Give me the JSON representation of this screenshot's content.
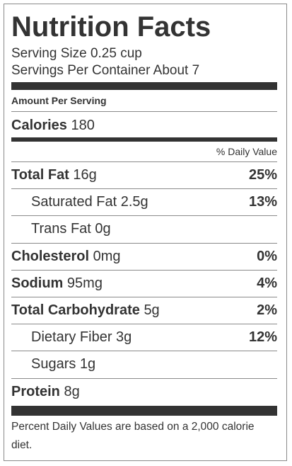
{
  "label": {
    "title": "Nutrition Facts",
    "serving_size": "Serving Size 0.25 cup",
    "servings_per_container": "Servings Per Container About 7",
    "amount_per_serving": "Amount Per Serving",
    "calories": {
      "name": "Calories",
      "amount": "180"
    },
    "daily_value_header": "% Daily Value",
    "rows": [
      {
        "name": "Total Fat",
        "amount": "16g",
        "dv": "25%",
        "indent": false
      },
      {
        "name": "Saturated Fat",
        "amount": "2.5g",
        "dv": "13%",
        "indent": true
      },
      {
        "name": "Trans Fat",
        "amount": "0g",
        "indent": true
      },
      {
        "name": "Cholesterol",
        "amount": "0mg",
        "dv": "0%",
        "indent": false
      },
      {
        "name": "Sodium",
        "amount": "95mg",
        "dv": "4%",
        "indent": false
      },
      {
        "name": "Total Carbohydrate",
        "amount": "5g",
        "dv": "2%",
        "indent": false
      },
      {
        "name": "Dietary Fiber",
        "amount": "3g",
        "dv": "12%",
        "indent": true
      },
      {
        "name": "Sugars",
        "amount": "1g",
        "indent": true
      },
      {
        "name": "Protein",
        "amount": "8g",
        "indent": false
      }
    ],
    "footnote": "Percent Daily Values are based on a 2,000 calorie diet."
  }
}
